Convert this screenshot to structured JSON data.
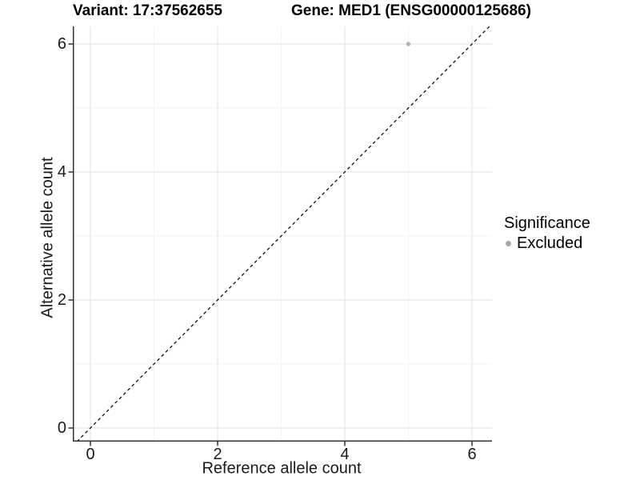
{
  "chart_data": {
    "type": "scatter",
    "title_left": "Variant: 17:37562655",
    "title_right": "Gene: MED1 (ENSG00000125686)",
    "xlabel": "Reference allele count",
    "ylabel": "Alternative allele count",
    "xlim": [
      -0.28,
      6.31
    ],
    "ylim": [
      -0.21,
      6.27
    ],
    "xticks": [
      0,
      2,
      4,
      6
    ],
    "yticks": [
      0,
      2,
      4,
      6
    ],
    "xticks_minor": [
      1,
      3,
      5
    ],
    "yticks_minor": [
      1,
      3,
      5
    ],
    "grid": "major and minor gridlines on white background",
    "reference_line": {
      "type": "identity y=x",
      "style": "dashed",
      "color": "#000000"
    },
    "series": [
      {
        "name": "Excluded",
        "color": "#b3b3b3",
        "points": [
          {
            "x": 5,
            "y": 6
          }
        ]
      }
    ],
    "legend": {
      "title": "Significance",
      "position": "right",
      "entries": [
        {
          "label": "Excluded",
          "color": "#a9a9a9"
        }
      ]
    }
  },
  "colors": {
    "background": "#ffffff",
    "axis_line": "#333333",
    "text": "#1a1a1a",
    "grid_major": "#e6e6e6",
    "grid_minor": "#f2f2f2"
  }
}
